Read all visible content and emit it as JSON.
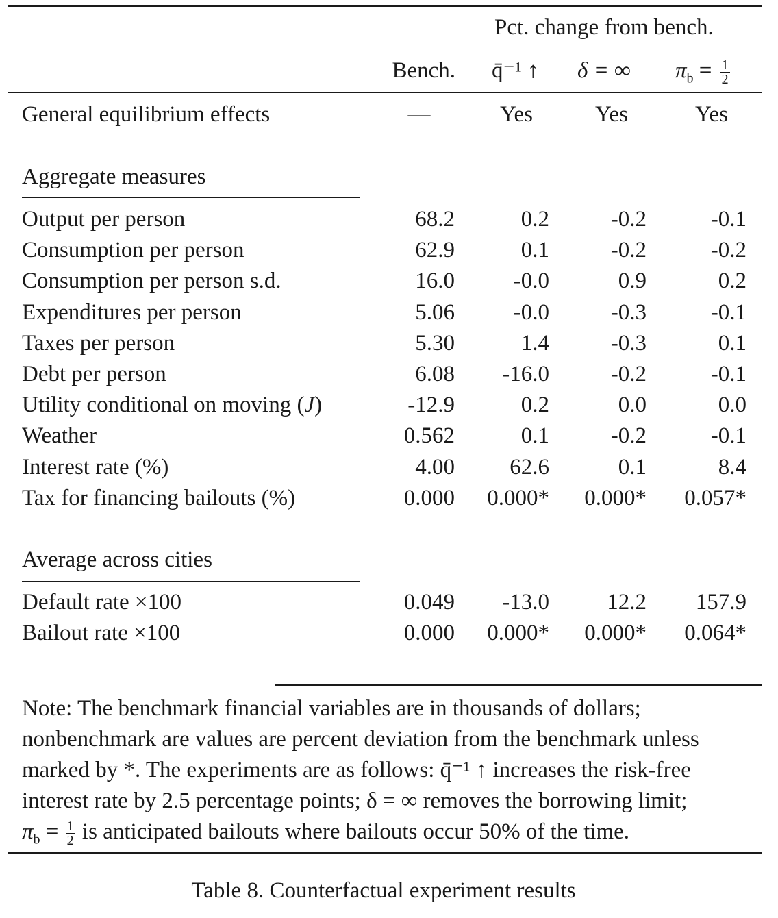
{
  "header": {
    "bench": "Bench.",
    "group": "Pct. change from bench.",
    "col1": "q̄⁻¹ ↑",
    "col2": "δ = ∞",
    "col3_pre": "π",
    "col3_sub": "b",
    "col3_eq": "=",
    "col3_num": "1",
    "col3_den": "2"
  },
  "ge_row": {
    "label": "General equilibrium effects",
    "values": [
      "—",
      "Yes",
      "Yes",
      "Yes"
    ]
  },
  "sections": [
    {
      "title": "Aggregate measures",
      "rows": [
        {
          "label": "Output per person",
          "values": [
            "68.2",
            "0.2",
            "-0.2",
            "-0.1"
          ]
        },
        {
          "label": "Consumption per person",
          "values": [
            "62.9",
            "0.1",
            "-0.2",
            "-0.2"
          ]
        },
        {
          "label": "Consumption per person s.d.",
          "values": [
            "16.0",
            "-0.0",
            "0.9",
            "0.2"
          ]
        },
        {
          "label": "Expenditures per person",
          "values": [
            "5.06",
            "-0.0",
            "-0.3",
            "-0.1"
          ]
        },
        {
          "label": "Taxes per person",
          "values": [
            "5.30",
            "1.4",
            "-0.3",
            "0.1"
          ]
        },
        {
          "label": "Debt per person",
          "values": [
            "6.08",
            "-16.0",
            "-0.2",
            "-0.1"
          ]
        },
        {
          "label": "Utility conditional on moving (J)",
          "values": [
            "-12.9",
            "0.2",
            "0.0",
            "0.0"
          ]
        },
        {
          "label": "Weather",
          "values": [
            "0.562",
            "0.1",
            "-0.2",
            "-0.1"
          ]
        },
        {
          "label": "Interest rate (%)",
          "values": [
            "4.00",
            "62.6",
            "0.1",
            "8.4"
          ]
        },
        {
          "label": "Tax for financing bailouts (%)",
          "values": [
            "0.000",
            "0.000*",
            "0.000*",
            "0.057*"
          ]
        }
      ]
    },
    {
      "title": "Average across cities",
      "rows": [
        {
          "label": "Default rate ×100",
          "values": [
            "0.049",
            "-13.0",
            "12.2",
            "157.9"
          ]
        },
        {
          "label": "Bailout rate ×100",
          "values": [
            "0.000",
            "0.000*",
            "0.000*",
            "0.064*"
          ]
        }
      ]
    }
  ],
  "note": {
    "line1": "Note: The benchmark financial variables are in thousands of dollars;",
    "line2": "nonbenchmark are values are percent deviation from the benchmark unless",
    "line3": "marked by *. The experiments are as follows: q̄⁻¹ ↑ increases the risk-free",
    "line4": "interest rate by 2.5 percentage points; δ = ∞ removes the borrowing limit;",
    "line5_pre": "π",
    "line5_sub": "b",
    "line5_eq": " = ",
    "line5_num": "1",
    "line5_den": "2",
    "line5_rest": " is anticipated bailouts where bailouts occur 50% of the time."
  },
  "caption": "Table 8. Counterfactual experiment results"
}
